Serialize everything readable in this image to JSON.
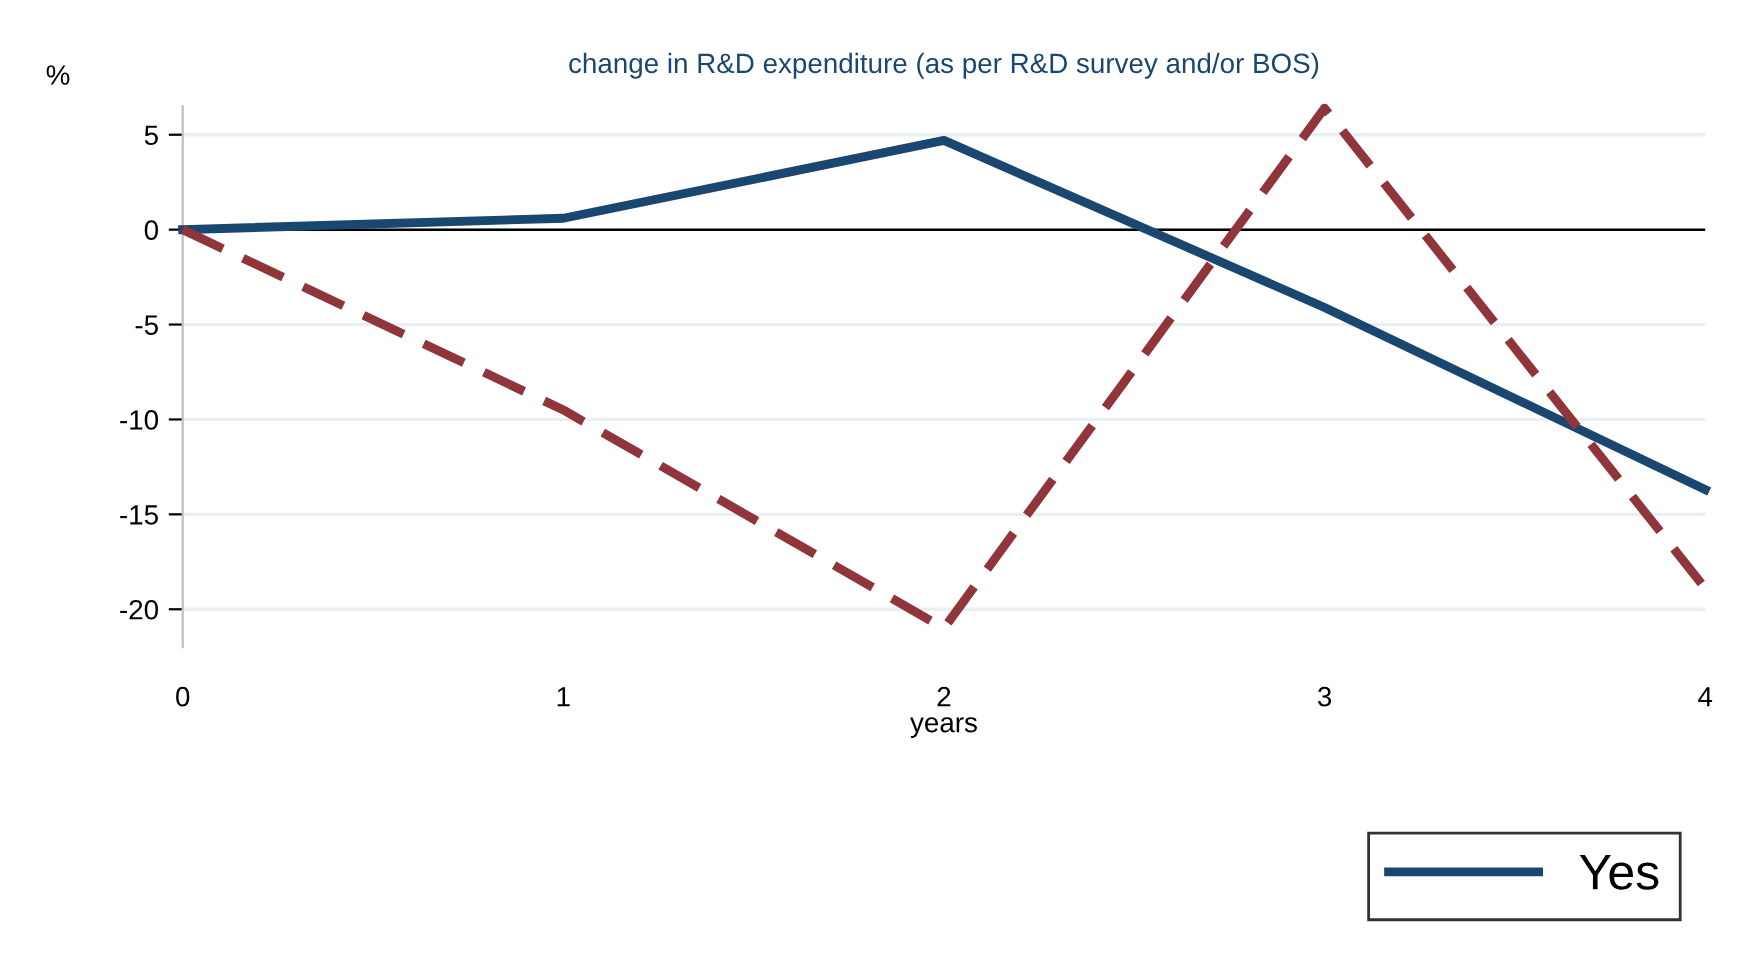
{
  "chart_data": {
    "type": "line",
    "title": "change in R&D expenditure (as per R&D survey and/or BOS)",
    "xlabel": "years",
    "ylabel": "%",
    "x": [
      0,
      1,
      2,
      3,
      4
    ],
    "series": [
      {
        "name": "Yes",
        "color": "#1a476f",
        "values": [
          0,
          0.6,
          4.7,
          -4.1,
          -13.7
        ],
        "line_style": "solid"
      },
      {
        "color": "#90353b",
        "values": [
          0,
          -9.5,
          -21,
          6.4,
          -18.9
        ],
        "line_style": "dashed"
      }
    ],
    "xlim": [
      0,
      4
    ],
    "xticks": [
      0,
      1,
      2,
      3,
      4
    ],
    "ylim": [
      -22,
      6.5
    ],
    "yticks": [
      5,
      0,
      -5,
      -10,
      -15,
      -20
    ],
    "ref_lines": [
      {
        "axis": "y",
        "value": 0,
        "color": "#000000"
      }
    ],
    "grid": "y",
    "legend": "bottom right",
    "marker": "none"
  }
}
